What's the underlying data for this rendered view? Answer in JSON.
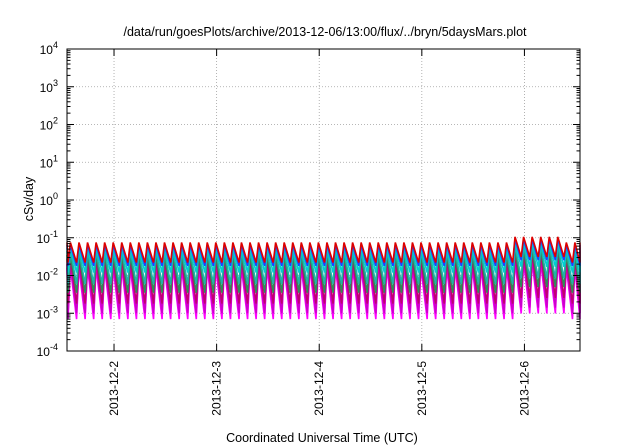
{
  "chart_data": {
    "type": "line",
    "title": "/data/run/goesPlots/archive/2013-12-06/13:00/flux/../bryn/5daysMars.plot",
    "xlabel": "Coordinated Universal Time (UTC)",
    "ylabel": "cSv/day",
    "yscale": "log",
    "ylim": [
      0.0001,
      10000
    ],
    "y_ticks": [
      {
        "value": 0.0001,
        "base": "10",
        "exp": "-4"
      },
      {
        "value": 0.001,
        "base": "10",
        "exp": "-3"
      },
      {
        "value": 0.01,
        "base": "10",
        "exp": "-2"
      },
      {
        "value": 0.1,
        "base": "10",
        "exp": "-1"
      },
      {
        "value": 1,
        "base": "10",
        "exp": "0"
      },
      {
        "value": 10,
        "base": "10",
        "exp": "1"
      },
      {
        "value": 100,
        "base": "10",
        "exp": "2"
      },
      {
        "value": 1000,
        "base": "10",
        "exp": "3"
      },
      {
        "value": 10000,
        "base": "10",
        "exp": "4"
      }
    ],
    "xlim": [
      "2013-12-01T13:00",
      "2013-12-06T13:00"
    ],
    "x_ticks": [
      "2013-12-2",
      "2013-12-3",
      "2013-12-4",
      "2013-12-5",
      "2013-12-6"
    ],
    "grid": true,
    "legend": "none",
    "sawtooth_period_hours": 2.0,
    "series": [
      {
        "color": "#ff00ff",
        "peak": 0.016,
        "trough": 0.0007
      },
      {
        "color": "#cc00cc",
        "peak": 0.02,
        "trough": 0.001
      },
      {
        "color": "#c00070",
        "peak": 0.028,
        "trough": 0.0018
      },
      {
        "color": "#2e8b57",
        "peak": 0.035,
        "trough": 0.0035
      },
      {
        "color": "#20b2aa",
        "peak": 0.045,
        "trough": 0.006
      },
      {
        "color": "#00ced1",
        "peak": 0.055,
        "trough": 0.012
      },
      {
        "color": "#1e40ff",
        "peak": 0.065,
        "trough": 0.018
      },
      {
        "color": "#dd0000",
        "peak": 0.075,
        "trough": 0.022
      }
    ]
  }
}
